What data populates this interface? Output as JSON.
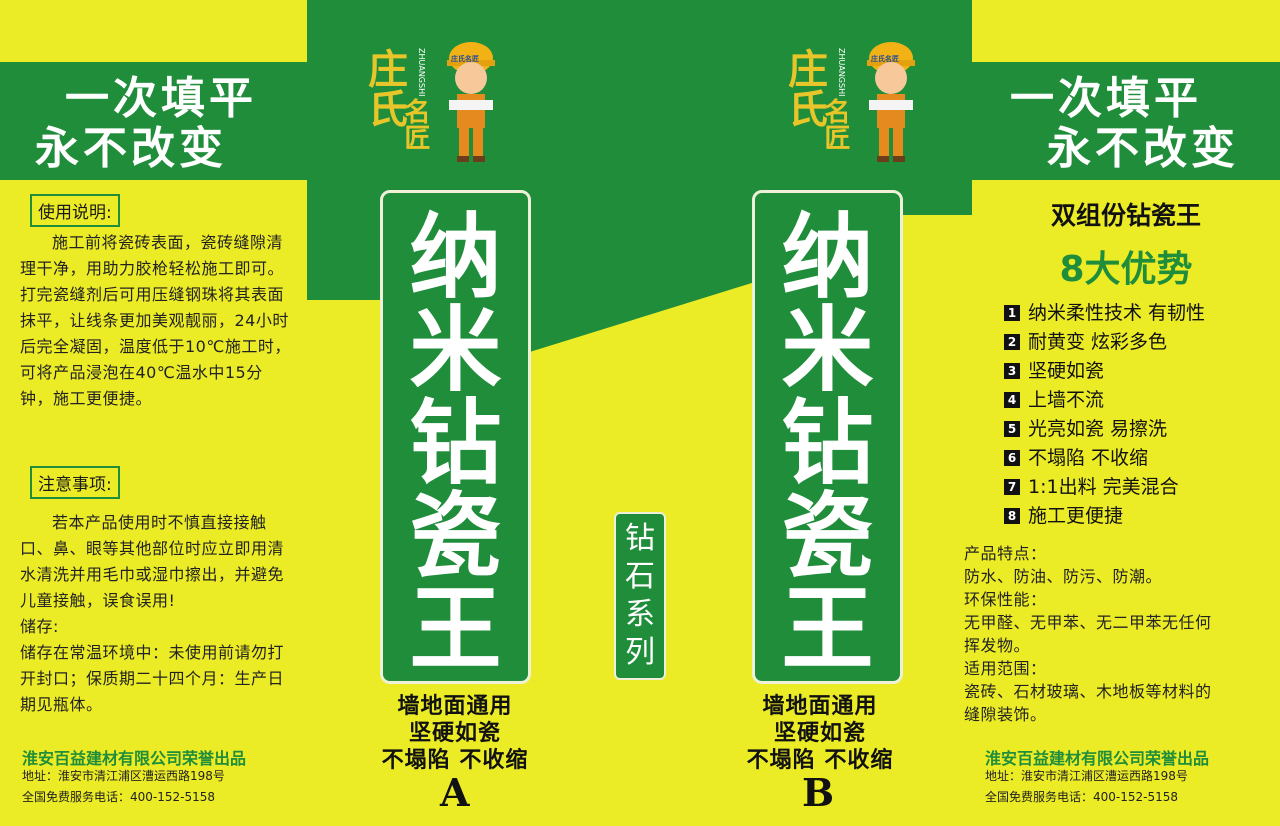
{
  "colors": {
    "background": "#ecec26",
    "green": "#1f8d3a"
  },
  "logo": {
    "brand_chars": "庄氏",
    "second_chars": "名匠",
    "pinyin": "ZHUANGSHI",
    "hat_text": "庄氏名匠"
  },
  "left_band": {
    "line1": "一次填平",
    "line2": "永不改变"
  },
  "right_band": {
    "line1": "一次填平",
    "line2": "永不改变"
  },
  "usage": {
    "title": "使用说明:",
    "text": "施工前将瓷砖表面，瓷砖缝隙清理干净，用助力胶枪轻松施工即可。打完瓷缝剂后可用压缝钢珠将其表面抹平，让线条更加美观靓丽，24小时后完全凝固，温度低于10℃施工时，可将产品浸泡在40℃温水中15分钟，施工更便捷。"
  },
  "notes": {
    "title": "注意事项:",
    "text": "若本产品使用时不慎直接接触口、鼻、眼等其他部位时应立即用清水清洗并用毛巾或湿巾擦出，并避免儿童接触，误食误用!",
    "storage_label": "储存:",
    "storage_text": "储存在常温环境中：未使用前请勿打开封口；保质期二十四个月：生产日期见瓶体。"
  },
  "product": {
    "chars": [
      "纳",
      "米",
      "钻",
      "瓷",
      "王"
    ]
  },
  "series": {
    "chars": [
      "钻",
      "石",
      "系",
      "列"
    ]
  },
  "slogans": [
    "墙地面通用",
    "坚硬如瓷",
    "不塌陷 不收缩"
  ],
  "letters": {
    "a": "A",
    "b": "B"
  },
  "company": {
    "name": "淮安百益建材有限公司荣誉出品",
    "address": "地址：淮安市清江浦区漕运西路198号",
    "phone": "全国免费服务电话：400-152-5158"
  },
  "right_panel": {
    "title": "双组份钻瓷王",
    "subtitle": "8大优势",
    "advantages": [
      {
        "num": "1",
        "text": "纳米柔性技术 有韧性"
      },
      {
        "num": "2",
        "text": "耐黄变 炫彩多色"
      },
      {
        "num": "3",
        "text": "坚硬如瓷"
      },
      {
        "num": "4",
        "text": "上墙不流"
      },
      {
        "num": "5",
        "text": "光亮如瓷 易擦洗"
      },
      {
        "num": "6",
        "text": "不塌陷 不收缩"
      },
      {
        "num": "7",
        "text": "1:1出料 完美混合"
      },
      {
        "num": "8",
        "text": "施工更便捷"
      }
    ],
    "features": [
      "产品特点：",
      "防水、防油、防污、防潮。",
      "环保性能：",
      "无甲醛、无甲苯、无二甲苯无任何",
      "挥发物。",
      "适用范围：",
      "瓷砖、石材玻璃、木地板等材料的",
      "缝隙装饰。"
    ]
  }
}
